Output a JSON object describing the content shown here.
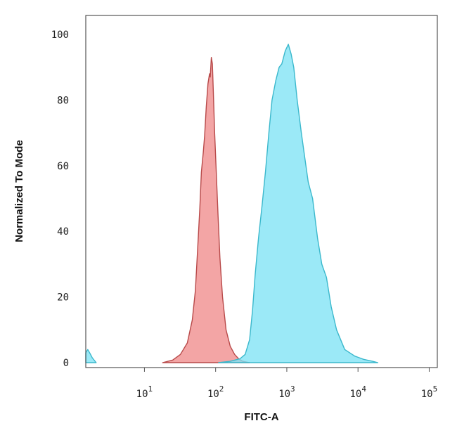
{
  "chart_data": {
    "type": "area",
    "title": "",
    "xlabel": "FITC-A",
    "ylabel": "Normalized To Mode",
    "x_scale": "log",
    "xlim": [
      1.5,
      130000
    ],
    "ylim": [
      0,
      100
    ],
    "grid": false,
    "legend": "none",
    "yticks": [
      {
        "value": 0,
        "label": "0"
      },
      {
        "value": 20,
        "label": "20"
      },
      {
        "value": 40,
        "label": "40"
      },
      {
        "value": 60,
        "label": "60"
      },
      {
        "value": 80,
        "label": "80"
      },
      {
        "value": 100,
        "label": "100"
      }
    ],
    "xticks": [
      {
        "value": 10,
        "base": "10",
        "exp": "1"
      },
      {
        "value": 100,
        "base": "10",
        "exp": "2"
      },
      {
        "value": 1000,
        "base": "10",
        "exp": "3"
      },
      {
        "value": 10000,
        "base": "10",
        "exp": "4"
      },
      {
        "value": 100000,
        "base": "10",
        "exp": "5"
      }
    ],
    "series": [
      {
        "fill": "#f08c8c",
        "stroke": "#b84a4a",
        "points": [
          [
            18,
            0
          ],
          [
            25,
            0.8
          ],
          [
            32,
            2.5
          ],
          [
            40,
            6
          ],
          [
            47,
            13
          ],
          [
            52,
            22
          ],
          [
            56,
            35
          ],
          [
            60,
            47
          ],
          [
            63,
            58
          ],
          [
            67,
            64
          ],
          [
            70,
            69
          ],
          [
            74,
            78
          ],
          [
            78,
            85
          ],
          [
            82,
            88
          ],
          [
            84,
            87
          ],
          [
            87,
            93
          ],
          [
            90,
            91
          ],
          [
            93,
            82
          ],
          [
            97,
            70
          ],
          [
            102,
            58
          ],
          [
            108,
            45
          ],
          [
            115,
            32
          ],
          [
            125,
            20
          ],
          [
            140,
            10
          ],
          [
            160,
            5
          ],
          [
            185,
            2.5
          ],
          [
            210,
            1.2
          ],
          [
            240,
            0.4
          ],
          [
            300,
            0
          ]
        ]
      },
      {
        "fill": "#7fe3f5",
        "stroke": "#3bb8cc",
        "points": [
          [
            110,
            0
          ],
          [
            160,
            0.4
          ],
          [
            220,
            1.2
          ],
          [
            260,
            2.5
          ],
          [
            300,
            7
          ],
          [
            330,
            16
          ],
          [
            360,
            27
          ],
          [
            400,
            38
          ],
          [
            450,
            48
          ],
          [
            500,
            58
          ],
          [
            560,
            70
          ],
          [
            620,
            80
          ],
          [
            700,
            86
          ],
          [
            780,
            90
          ],
          [
            850,
            91
          ],
          [
            950,
            95
          ],
          [
            1050,
            97
          ],
          [
            1150,
            94
          ],
          [
            1250,
            90
          ],
          [
            1400,
            80
          ],
          [
            1600,
            70
          ],
          [
            1800,
            62
          ],
          [
            2000,
            55
          ],
          [
            2300,
            50
          ],
          [
            2700,
            38
          ],
          [
            3100,
            30
          ],
          [
            3600,
            26
          ],
          [
            4200,
            17
          ],
          [
            5000,
            10
          ],
          [
            6500,
            4
          ],
          [
            9000,
            2
          ],
          [
            12000,
            1
          ],
          [
            16000,
            0.4
          ],
          [
            19000,
            0
          ]
        ]
      },
      {
        "fill": "#7fe3f5",
        "stroke": "#3bb8cc",
        "points": [
          [
            1.5,
            3
          ],
          [
            1.6,
            4
          ],
          [
            1.7,
            3
          ],
          [
            1.85,
            1.5
          ],
          [
            2.1,
            0
          ]
        ]
      }
    ]
  }
}
